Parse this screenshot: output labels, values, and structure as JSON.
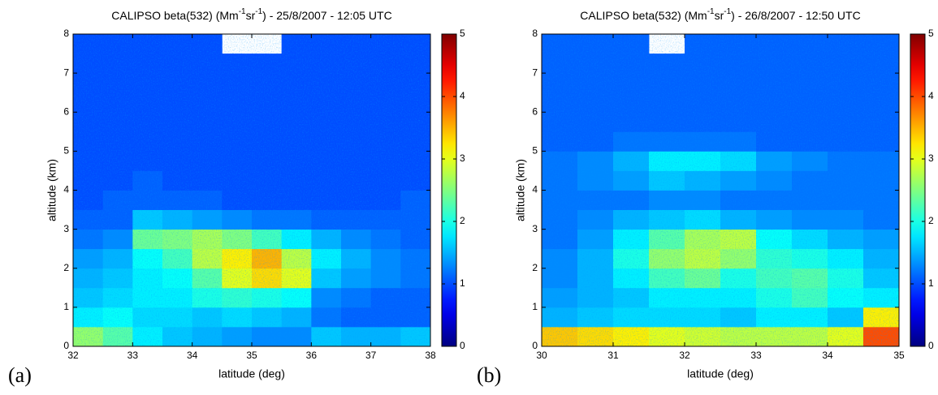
{
  "chart_data": [
    {
      "type": "heatmap",
      "title": [
        "CALIPSO beta(532) (Mm",
        "-1",
        "sr",
        "-1",
        ") - 25/8/2007 - 12:05 UTC"
      ],
      "panel_label": "(a)",
      "xlabel": "latitude (deg)",
      "ylabel": "altitude (km)",
      "xlim": [
        32,
        38
      ],
      "xticks": [
        32,
        33,
        34,
        35,
        36,
        37,
        38
      ],
      "ylim": [
        0,
        8
      ],
      "yticks": [
        0,
        1,
        2,
        3,
        4,
        5,
        6,
        7,
        8
      ],
      "zlim": [
        0,
        5
      ],
      "zticks": [
        0,
        1,
        2,
        3,
        4,
        5
      ],
      "colormap": "jet",
      "x_bins": [
        32,
        32.5,
        33,
        33.5,
        34,
        34.5,
        35,
        35.5,
        36,
        36.5,
        37,
        37.5,
        38
      ],
      "y_bins": [
        0,
        0.5,
        1,
        1.5,
        2,
        2.5,
        3,
        3.5,
        4,
        4.5,
        5,
        5.5,
        6,
        6.5,
        7,
        7.5,
        8
      ],
      "values": [
        [
          2.6,
          2.3,
          1.8,
          1.6,
          1.5,
          1.4,
          1.3,
          1.3,
          1.6,
          1.5,
          1.5,
          1.6
        ],
        [
          1.8,
          1.9,
          1.7,
          1.7,
          1.6,
          1.7,
          1.6,
          1.5,
          1.2,
          1.1,
          1.1,
          1.1
        ],
        [
          1.6,
          1.7,
          1.8,
          1.8,
          2.0,
          2.1,
          2.0,
          1.9,
          1.3,
          1.2,
          1.1,
          1.1
        ],
        [
          1.5,
          1.6,
          1.8,
          1.9,
          2.3,
          3.0,
          3.3,
          3.0,
          1.6,
          1.4,
          1.3,
          1.2
        ],
        [
          1.4,
          1.5,
          1.9,
          2.2,
          2.8,
          3.2,
          3.5,
          2.8,
          1.8,
          1.5,
          1.3,
          1.2
        ],
        [
          1.2,
          1.3,
          2.4,
          2.5,
          2.7,
          2.5,
          2.2,
          1.8,
          1.5,
          1.3,
          1.2,
          1.1
        ],
        [
          1.1,
          1.1,
          1.6,
          1.5,
          1.4,
          1.3,
          1.2,
          1.2,
          1.1,
          1.1,
          1.1,
          1.1
        ],
        [
          1.0,
          1.1,
          1.1,
          1.1,
          1.1,
          1.0,
          1.0,
          1.0,
          1.0,
          1.0,
          1.0,
          1.1
        ],
        [
          1.0,
          1.0,
          1.1,
          1.0,
          1.0,
          1.0,
          1.0,
          1.0,
          1.0,
          1.0,
          1.0,
          1.0
        ],
        [
          1.0,
          1.0,
          1.0,
          1.0,
          1.0,
          1.0,
          1.0,
          1.0,
          1.0,
          1.0,
          1.0,
          1.0
        ],
        [
          1.0,
          1.0,
          1.0,
          1.0,
          1.0,
          1.0,
          1.0,
          1.0,
          1.0,
          1.0,
          1.0,
          1.0
        ],
        [
          1.0,
          1.0,
          1.0,
          1.0,
          1.0,
          1.0,
          1.0,
          1.0,
          1.0,
          1.0,
          1.0,
          1.0
        ],
        [
          1.0,
          1.0,
          1.0,
          1.0,
          1.0,
          1.0,
          1.0,
          1.0,
          1.0,
          1.0,
          1.0,
          1.0
        ],
        [
          1.0,
          1.0,
          1.0,
          1.0,
          1.0,
          1.0,
          1.0,
          1.0,
          1.0,
          1.0,
          1.0,
          1.0
        ],
        [
          1.0,
          1.0,
          1.0,
          1.0,
          1.0,
          1.0,
          1.0,
          1.0,
          1.0,
          1.0,
          1.0,
          1.0
        ],
        [
          1.0,
          1.0,
          1.0,
          1.0,
          1.0,
          null,
          null,
          1.0,
          1.0,
          1.0,
          1.0,
          1.0
        ]
      ]
    },
    {
      "type": "heatmap",
      "title": [
        "CALIPSO beta(532) (Mm",
        "-1",
        "sr",
        "-1",
        ") - 26/8/2007 - 12:50 UTC"
      ],
      "panel_label": "(b)",
      "xlabel": "latitude (deg)",
      "ylabel": "altitude (km)",
      "xlim": [
        30,
        35
      ],
      "xticks": [
        30,
        31,
        32,
        33,
        34,
        35
      ],
      "ylim": [
        0,
        8
      ],
      "yticks": [
        0,
        1,
        2,
        3,
        4,
        5,
        6,
        7,
        8
      ],
      "zlim": [
        0,
        5
      ],
      "zticks": [
        0,
        1,
        2,
        3,
        4,
        5
      ],
      "colormap": "jet",
      "x_bins": [
        30,
        30.5,
        31,
        31.5,
        32,
        32.5,
        33,
        33.5,
        34,
        34.5,
        35
      ],
      "y_bins": [
        0,
        0.5,
        1,
        1.5,
        2,
        2.5,
        3,
        3.5,
        4,
        4.5,
        5,
        5.5,
        6,
        6.5,
        7,
        7.5,
        8
      ],
      "values": [
        [
          3.4,
          3.3,
          3.2,
          3.0,
          2.9,
          2.8,
          2.8,
          2.8,
          3.0,
          4.0
        ],
        [
          1.5,
          1.6,
          1.7,
          1.7,
          1.7,
          1.6,
          1.8,
          1.8,
          1.6,
          3.2
        ],
        [
          1.4,
          1.5,
          1.6,
          1.8,
          1.8,
          1.8,
          2.0,
          2.2,
          1.9,
          1.8
        ],
        [
          1.3,
          1.5,
          1.8,
          2.2,
          2.4,
          2.0,
          2.2,
          2.3,
          2.0,
          1.6
        ],
        [
          1.3,
          1.5,
          2.0,
          2.6,
          2.8,
          2.6,
          2.1,
          2.0,
          1.8,
          1.5
        ],
        [
          1.2,
          1.4,
          1.8,
          2.3,
          2.7,
          2.8,
          1.9,
          1.7,
          1.5,
          1.4
        ],
        [
          1.2,
          1.3,
          1.5,
          1.6,
          1.7,
          1.5,
          1.4,
          1.3,
          1.3,
          1.2
        ],
        [
          1.2,
          1.2,
          1.2,
          1.3,
          1.3,
          1.2,
          1.2,
          1.2,
          1.2,
          1.2
        ],
        [
          1.2,
          1.3,
          1.4,
          1.6,
          1.5,
          1.4,
          1.3,
          1.2,
          1.2,
          1.2
        ],
        [
          1.2,
          1.3,
          1.5,
          1.8,
          1.8,
          1.7,
          1.4,
          1.3,
          1.2,
          1.2
        ],
        [
          1.1,
          1.1,
          1.2,
          1.2,
          1.2,
          1.2,
          1.1,
          1.1,
          1.1,
          1.1
        ],
        [
          1.1,
          1.1,
          1.1,
          1.1,
          1.1,
          1.1,
          1.1,
          1.1,
          1.1,
          1.1
        ],
        [
          1.1,
          1.1,
          1.1,
          1.1,
          1.1,
          1.1,
          1.1,
          1.1,
          1.1,
          1.1
        ],
        [
          1.1,
          1.1,
          1.1,
          1.1,
          1.1,
          1.1,
          1.1,
          1.1,
          1.1,
          1.1
        ],
        [
          1.1,
          1.1,
          1.1,
          1.1,
          1.1,
          1.1,
          1.1,
          1.1,
          1.1,
          1.1
        ],
        [
          1.1,
          1.1,
          1.1,
          null,
          1.1,
          1.1,
          1.1,
          1.1,
          1.1,
          1.1
        ]
      ]
    }
  ]
}
